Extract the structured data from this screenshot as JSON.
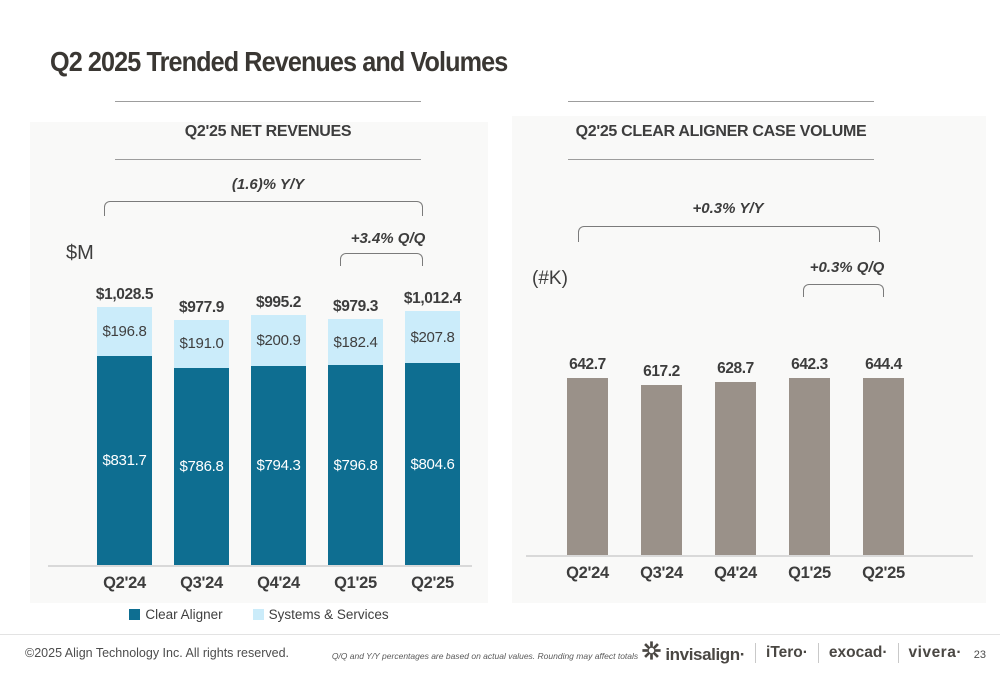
{
  "slide": {
    "title": "Q2 2025 Trended Revenues and Volumes"
  },
  "chart_data": [
    {
      "type": "stacked-bar",
      "title": "Q2'25 NET REVENUES",
      "unit_label": "$M",
      "value_prefix": "$",
      "yoy_label": "(1.6)% Y/Y",
      "qoq_label": "+3.4% Q/Q",
      "categories": [
        "Q2'24",
        "Q3'24",
        "Q4'24",
        "Q1'25",
        "Q2'25"
      ],
      "series": [
        {
          "name": "Clear Aligner",
          "color": "#0e6e91",
          "values": [
            831.7,
            786.8,
            794.3,
            796.8,
            804.6
          ]
        },
        {
          "name": "Systems & Services",
          "color": "#cbecfa",
          "values": [
            196.8,
            191.0,
            200.9,
            182.4,
            207.8
          ]
        }
      ],
      "totals": [
        1028.5,
        977.9,
        995.2,
        979.3,
        1012.4
      ],
      "ylim": [
        0,
        1100
      ],
      "grid": false,
      "legend_position": "bottom"
    },
    {
      "type": "bar",
      "title": "Q2'25 CLEAR ALIGNER CASE VOLUME",
      "unit_label": "(#K)",
      "value_prefix": "",
      "yoy_label": "+0.3% Y/Y",
      "qoq_label": "+0.3% Q/Q",
      "categories": [
        "Q2'24",
        "Q3'24",
        "Q4'24",
        "Q1'25",
        "Q2'25"
      ],
      "values": [
        642.7,
        617.2,
        628.7,
        642.3,
        644.4
      ],
      "bar_color": "#9a9189",
      "ylim": [
        0,
        700
      ],
      "grid": false,
      "legend_position": "none"
    }
  ],
  "footer": {
    "copyright": "©2025 Align Technology Inc. All rights reserved.",
    "footnote": "Q/Q and Y/Y percentages are based on actual values. Rounding may affect totals",
    "brands": [
      "invisalign·",
      "iTero·",
      "exocad·",
      "vivera·"
    ],
    "page_number": "23"
  }
}
